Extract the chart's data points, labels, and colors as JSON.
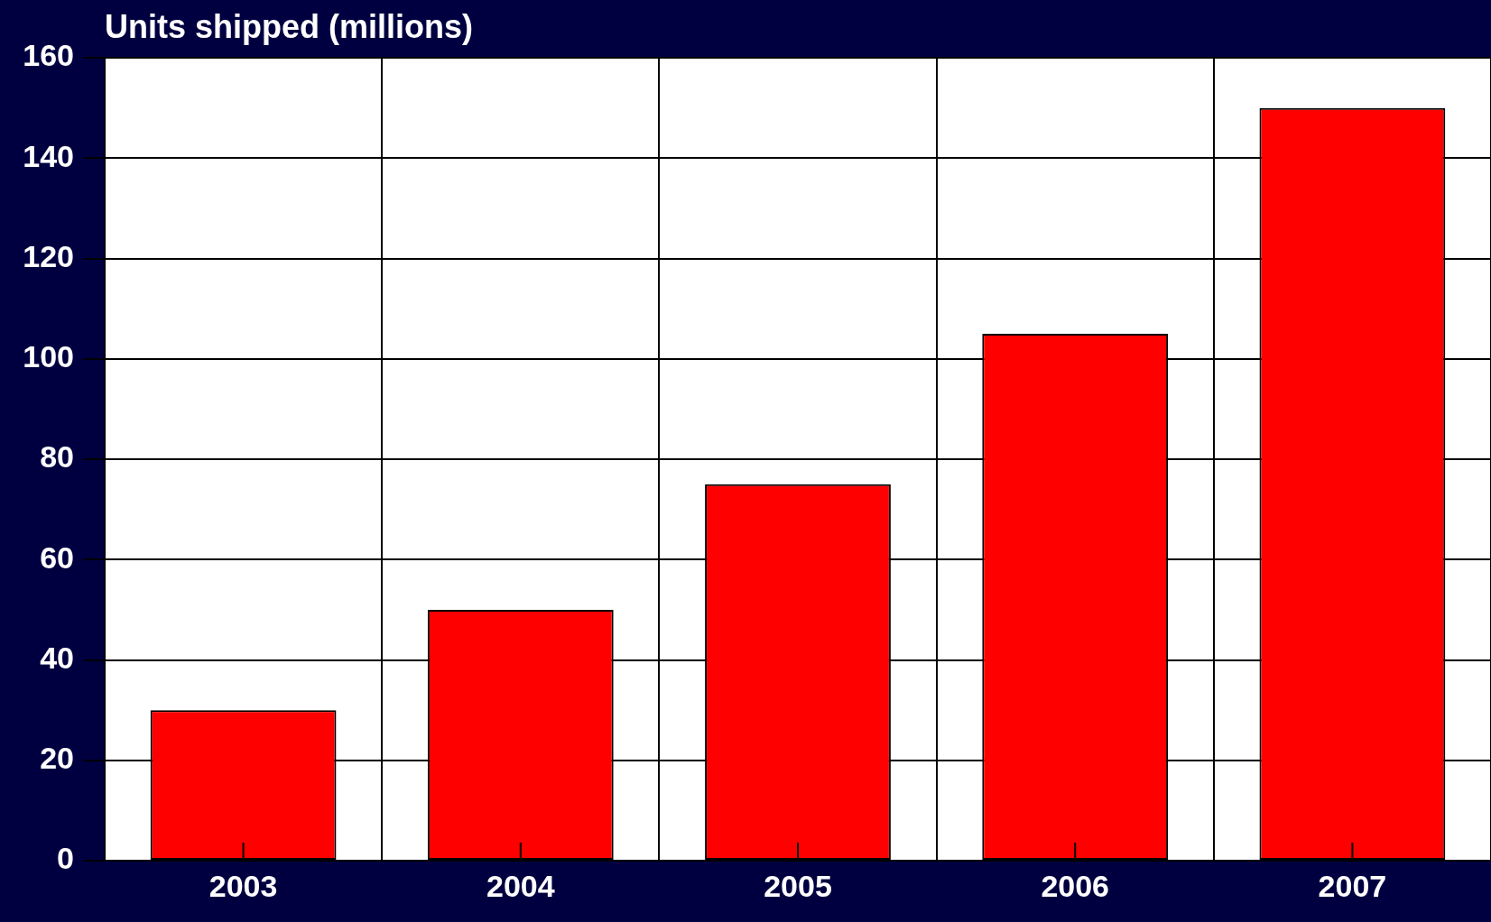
{
  "chart_data": {
    "type": "bar",
    "ylabel": "Units shipped (millions)",
    "categories": [
      "2003",
      "2004",
      "2005",
      "2006",
      "2007"
    ],
    "values": [
      30,
      50,
      75,
      105,
      150
    ],
    "color": "#ff0000",
    "ylim": [
      0,
      160
    ],
    "yticks": [
      0,
      20,
      40,
      60,
      80,
      100,
      120,
      140,
      160
    ],
    "grid": true
  }
}
